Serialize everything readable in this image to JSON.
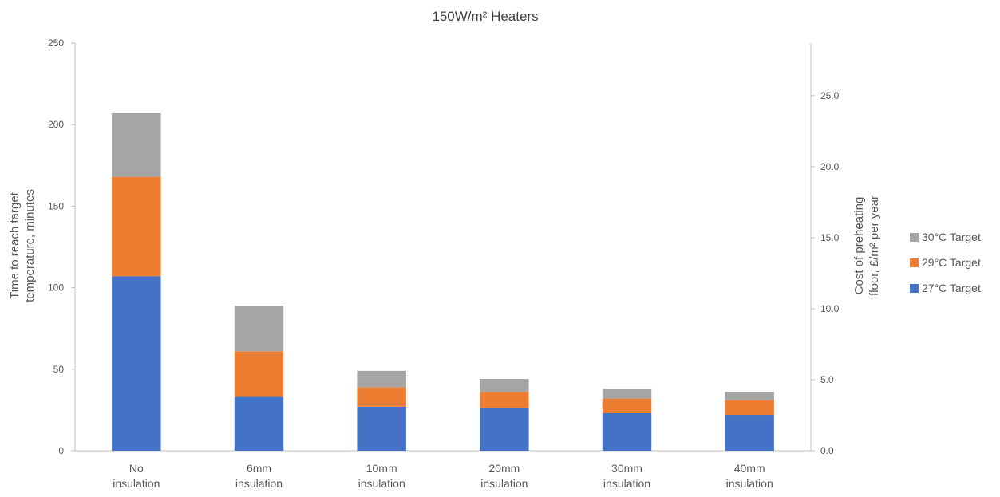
{
  "chart_data": {
    "type": "bar",
    "stacked": true,
    "title": "150W/m² Heaters",
    "categories": [
      [
        "No",
        "insulation"
      ],
      [
        "6mm",
        "insulation"
      ],
      [
        "10mm",
        "insulation"
      ],
      [
        "20mm",
        "insulation"
      ],
      [
        "30mm",
        "insulation"
      ],
      [
        "40mm",
        "insulation"
      ]
    ],
    "series": [
      {
        "name": "27°C Target",
        "color": "#4472C4",
        "values": [
          107,
          33,
          27,
          26,
          23,
          22
        ]
      },
      {
        "name": "29°C Target",
        "color": "#ED7D31",
        "values": [
          61,
          28,
          12,
          10,
          9,
          9
        ]
      },
      {
        "name": "30°C Target",
        "color": "#A5A5A5",
        "values": [
          39,
          28,
          10,
          8,
          6,
          5
        ]
      }
    ],
    "ylabel_left": [
      "Time to reach target",
      "temperature,  minutes"
    ],
    "ylabel_right": [
      "Cost of preheating",
      "floor, £/m² per year"
    ],
    "ylim_left": [
      0,
      250
    ],
    "yticks_left": [
      "0",
      "50",
      "100",
      "150",
      "200",
      "250"
    ],
    "ylim_right": [
      0,
      28.7
    ],
    "yticks_right": [
      "0.0",
      "5.0",
      "10.0",
      "15.0",
      "20.0",
      "25.0"
    ],
    "legend_position": "right",
    "grid": false
  }
}
